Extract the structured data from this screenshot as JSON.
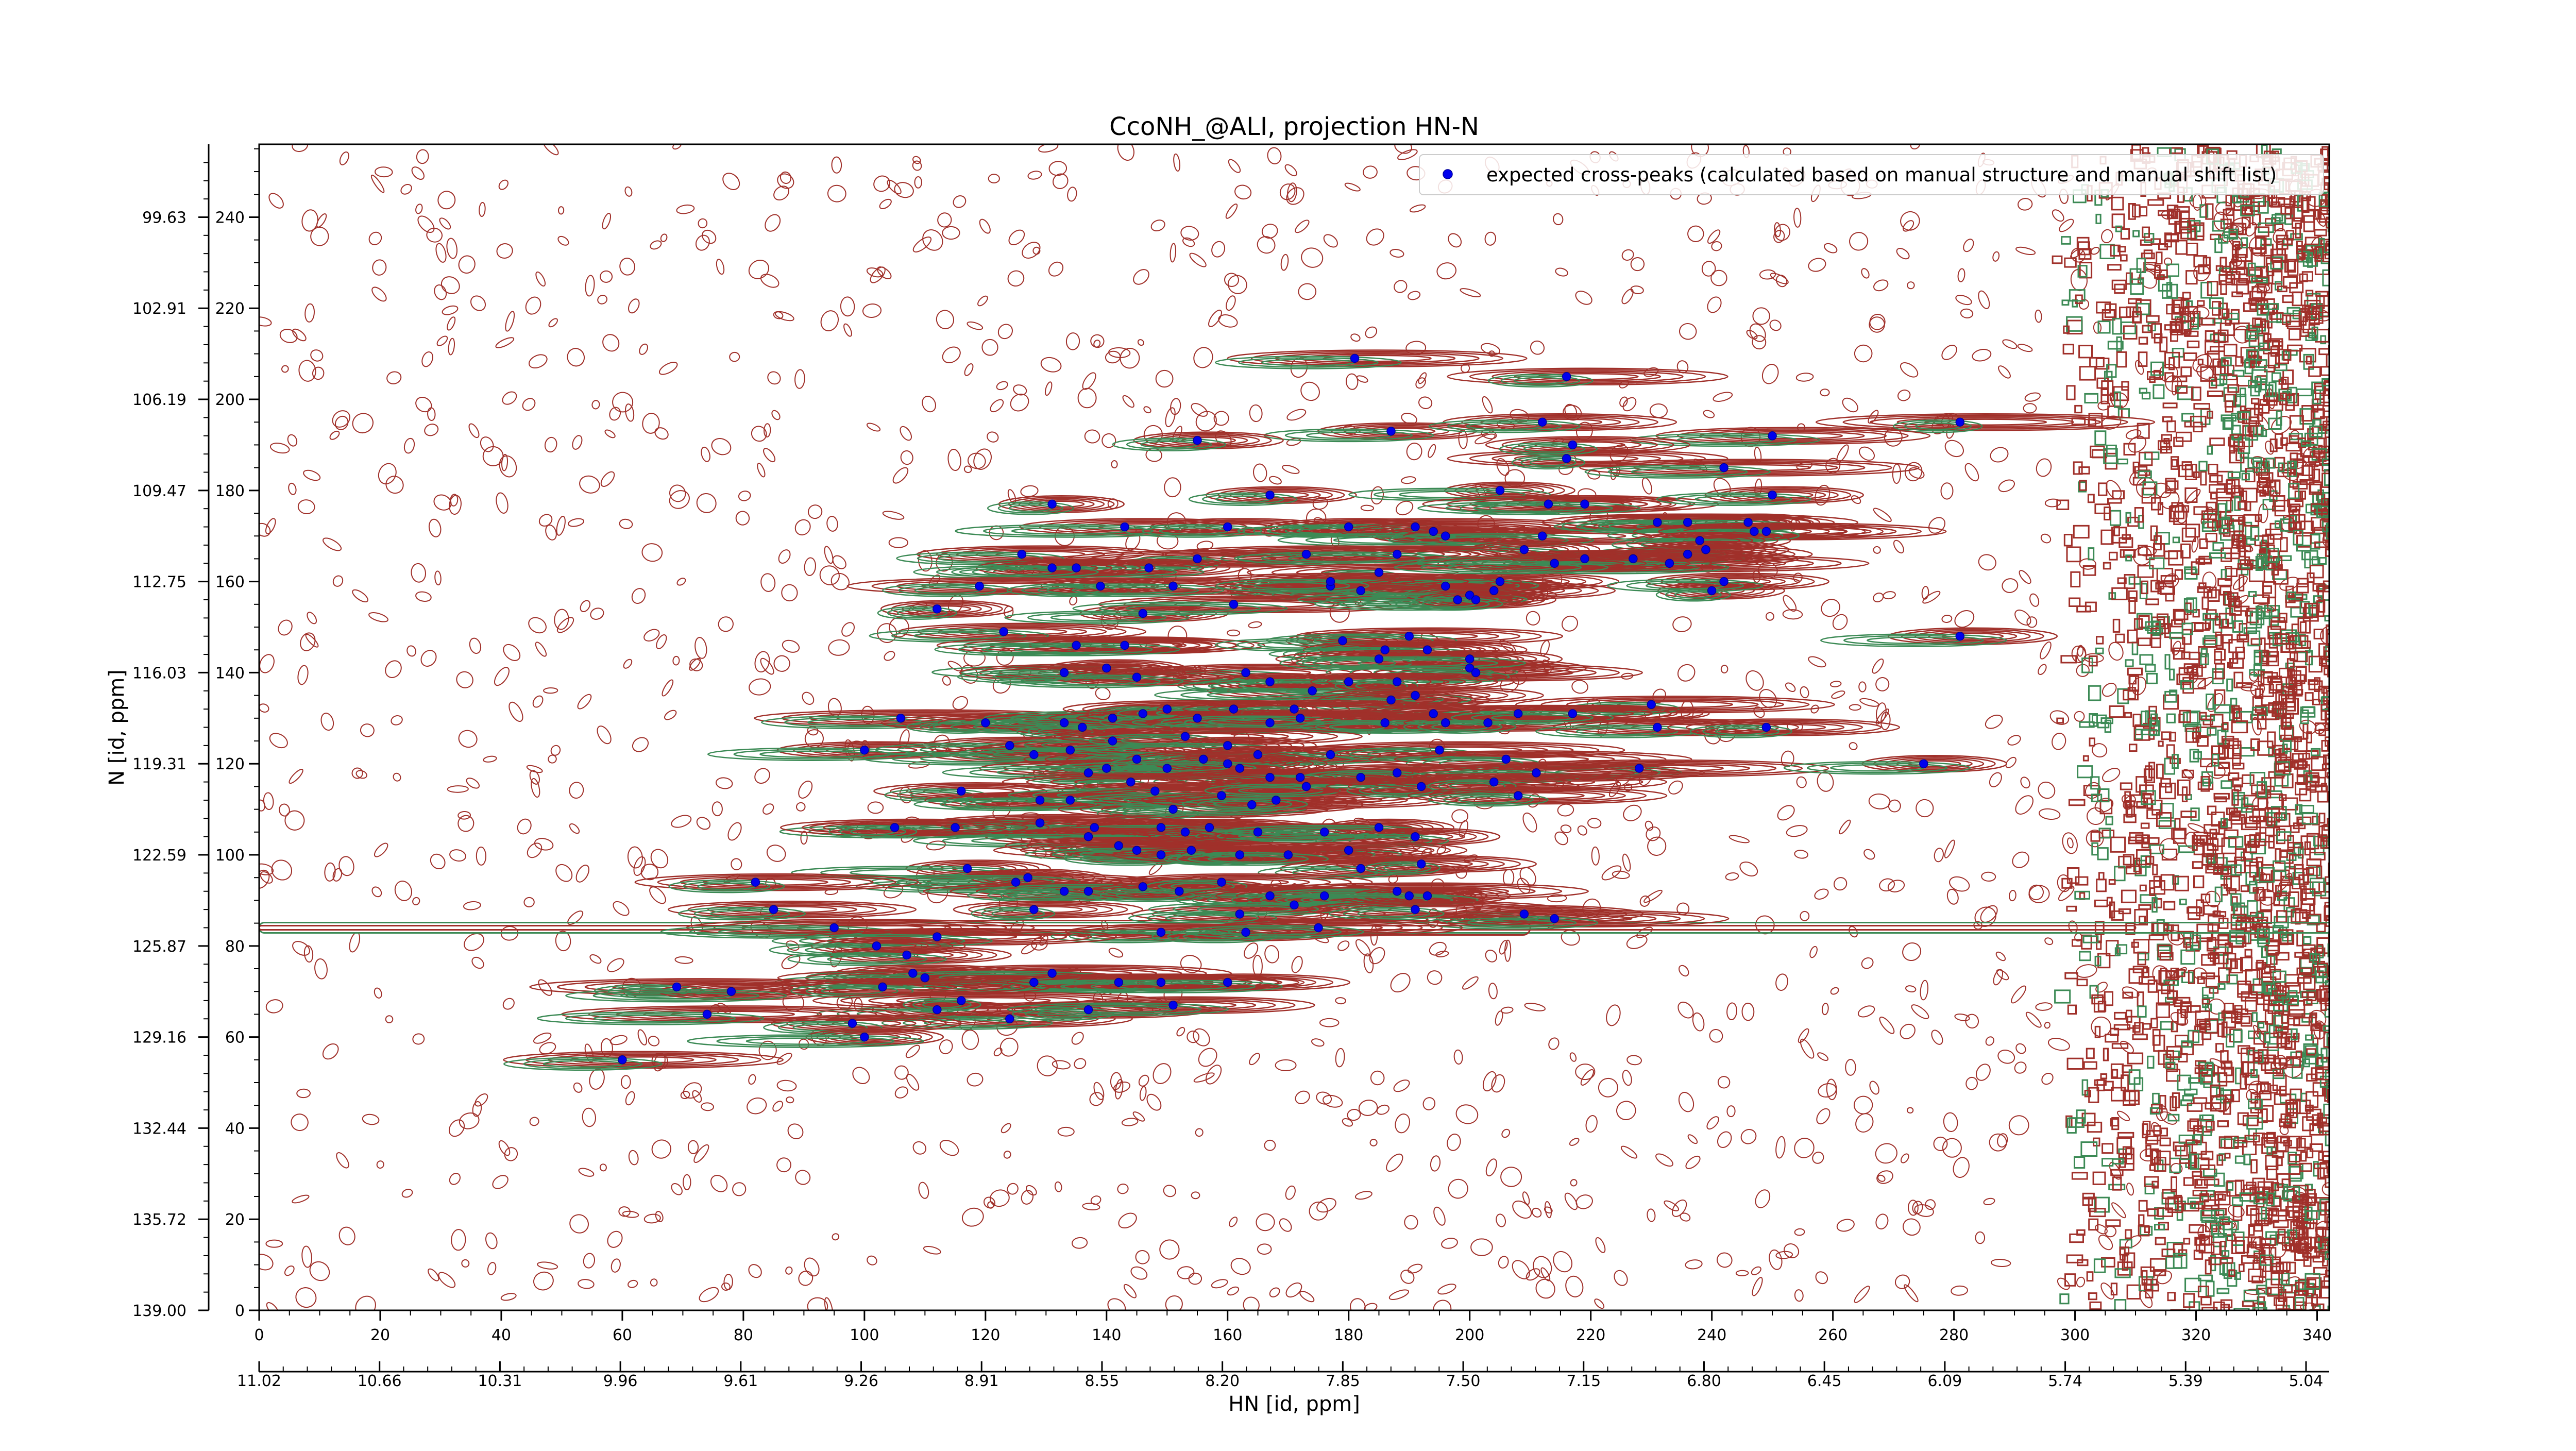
{
  "chart_data": {
    "type": "scatter",
    "title": "CcoNH_@ALI, projection HN-N",
    "xlabel": "HN [id, ppm]",
    "ylabel": "N [id, ppm]",
    "xlim": [
      0,
      342
    ],
    "ylim": [
      0,
      256
    ],
    "x_ticks": [
      0,
      20,
      40,
      60,
      80,
      100,
      120,
      140,
      160,
      180,
      200,
      220,
      240,
      260,
      280,
      300,
      320,
      340
    ],
    "y_ticks": [
      0,
      20,
      40,
      60,
      80,
      100,
      120,
      140,
      160,
      180,
      200,
      220,
      240
    ],
    "x_ppm_labels": [
      "11.02",
      "10.66",
      "10.31",
      "9.96",
      "9.61",
      "9.26",
      "8.91",
      "8.55",
      "8.20",
      "7.85",
      "7.50",
      "7.15",
      "6.80",
      "6.45",
      "6.09",
      "5.74",
      "5.39",
      "5.04"
    ],
    "y_ppm_labels": [
      "139.00",
      "135.72",
      "132.44",
      "129.16",
      "125.87",
      "122.59",
      "119.31",
      "116.03",
      "112.75",
      "109.47",
      "106.19",
      "102.91",
      "99.63"
    ],
    "legend": {
      "position": "top-right",
      "entries": [
        "expected cross-peaks (calculated based on manual structure and manual shift list)"
      ]
    },
    "colors": {
      "peaks": "#0000ee",
      "contour_positive": "#a0302a",
      "contour_negative": "#3c8a55",
      "axis": "#000000"
    },
    "series": [
      {
        "name": "expected cross-peaks (calculated based on manual structure and manual shift list)",
        "points": [
          [
            181,
            209
          ],
          [
            216,
            205
          ],
          [
            187,
            193
          ],
          [
            155,
            191
          ],
          [
            212,
            195
          ],
          [
            281,
            195
          ],
          [
            250,
            192
          ],
          [
            216,
            187
          ],
          [
            217,
            190
          ],
          [
            242,
            185
          ],
          [
            167,
            179
          ],
          [
            205,
            180
          ],
          [
            213,
            177
          ],
          [
            219,
            177
          ],
          [
            250,
            179
          ],
          [
            131,
            177
          ],
          [
            126,
            166
          ],
          [
            135,
            163
          ],
          [
            143,
            172
          ],
          [
            160,
            172
          ],
          [
            180,
            172
          ],
          [
            191,
            172
          ],
          [
            194,
            171
          ],
          [
            196,
            170
          ],
          [
            212,
            170
          ],
          [
            231,
            173
          ],
          [
            236,
            173
          ],
          [
            246,
            173
          ],
          [
            247,
            171
          ],
          [
            249,
            171
          ],
          [
            238,
            169
          ],
          [
            239,
            167
          ],
          [
            236,
            166
          ],
          [
            209,
            167
          ],
          [
            173,
            166
          ],
          [
            155,
            165
          ],
          [
            147,
            163
          ],
          [
            131,
            163
          ],
          [
            188,
            166
          ],
          [
            177,
            159
          ],
          [
            182,
            158
          ],
          [
            185,
            162
          ],
          [
            196,
            159
          ],
          [
            204,
            158
          ],
          [
            205,
            160
          ],
          [
            219,
            165
          ],
          [
            227,
            165
          ],
          [
            233,
            164
          ],
          [
            240,
            158
          ],
          [
            119,
            159
          ],
          [
            139,
            159
          ],
          [
            151,
            159
          ],
          [
            146,
            153
          ],
          [
            161,
            155
          ],
          [
            177,
            160
          ],
          [
            198,
            156
          ],
          [
            200,
            157
          ],
          [
            201,
            156
          ],
          [
            214,
            164
          ],
          [
            242,
            160
          ],
          [
            112,
            154
          ],
          [
            123,
            149
          ],
          [
            135,
            146
          ],
          [
            143,
            146
          ],
          [
            140,
            141
          ],
          [
            163,
            140
          ],
          [
            167,
            138
          ],
          [
            179,
            147
          ],
          [
            190,
            148
          ],
          [
            186,
            145
          ],
          [
            193,
            145
          ],
          [
            200,
            141
          ],
          [
            201,
            140
          ],
          [
            281,
            148
          ],
          [
            185,
            143
          ],
          [
            200,
            143
          ],
          [
            133,
            140
          ],
          [
            145,
            139
          ],
          [
            174,
            136
          ],
          [
            180,
            138
          ],
          [
            188,
            138
          ],
          [
            191,
            135
          ],
          [
            187,
            134
          ],
          [
            194,
            131
          ],
          [
            208,
            131
          ],
          [
            230,
            133
          ],
          [
            106,
            130
          ],
          [
            120,
            129
          ],
          [
            133,
            129
          ],
          [
            136,
            128
          ],
          [
            141,
            130
          ],
          [
            146,
            131
          ],
          [
            150,
            132
          ],
          [
            155,
            130
          ],
          [
            161,
            132
          ],
          [
            171,
            132
          ],
          [
            167,
            129
          ],
          [
            172,
            130
          ],
          [
            186,
            129
          ],
          [
            196,
            129
          ],
          [
            203,
            129
          ],
          [
            217,
            131
          ],
          [
            231,
            128
          ],
          [
            249,
            128
          ],
          [
            100,
            123
          ],
          [
            124,
            124
          ],
          [
            128,
            122
          ],
          [
            134,
            123
          ],
          [
            141,
            125
          ],
          [
            145,
            121
          ],
          [
            153,
            126
          ],
          [
            160,
            124
          ],
          [
            162,
            119
          ],
          [
            165,
            122
          ],
          [
            177,
            122
          ],
          [
            195,
            123
          ],
          [
            206,
            121
          ],
          [
            228,
            119
          ],
          [
            275,
            120
          ],
          [
            137,
            118
          ],
          [
            140,
            119
          ],
          [
            150,
            119
          ],
          [
            156,
            121
          ],
          [
            160,
            120
          ],
          [
            167,
            117
          ],
          [
            172,
            117
          ],
          [
            182,
            117
          ],
          [
            188,
            118
          ],
          [
            211,
            118
          ],
          [
            116,
            114
          ],
          [
            129,
            112
          ],
          [
            134,
            112
          ],
          [
            144,
            116
          ],
          [
            148,
            114
          ],
          [
            151,
            110
          ],
          [
            159,
            113
          ],
          [
            164,
            111
          ],
          [
            168,
            112
          ],
          [
            173,
            115
          ],
          [
            192,
            115
          ],
          [
            204,
            116
          ],
          [
            208,
            113
          ],
          [
            115,
            106
          ],
          [
            129,
            107
          ],
          [
            138,
            106
          ],
          [
            149,
            106
          ],
          [
            153,
            105
          ],
          [
            157,
            106
          ],
          [
            165,
            105
          ],
          [
            176,
            105
          ],
          [
            185,
            106
          ],
          [
            191,
            104
          ],
          [
            180,
            101
          ],
          [
            105,
            106
          ],
          [
            137,
            104
          ],
          [
            142,
            102
          ],
          [
            145,
            101
          ],
          [
            149,
            100
          ],
          [
            154,
            101
          ],
          [
            162,
            100
          ],
          [
            170,
            100
          ],
          [
            182,
            97
          ],
          [
            192,
            98
          ],
          [
            117,
            97
          ],
          [
            125,
            94
          ],
          [
            127,
            95
          ],
          [
            133,
            92
          ],
          [
            137,
            92
          ],
          [
            146,
            93
          ],
          [
            152,
            92
          ],
          [
            159,
            94
          ],
          [
            167,
            91
          ],
          [
            176,
            91
          ],
          [
            188,
            92
          ],
          [
            82,
            94
          ],
          [
            85,
            88
          ],
          [
            128,
            88
          ],
          [
            162,
            87
          ],
          [
            171,
            89
          ],
          [
            190,
            91
          ],
          [
            193,
            91
          ],
          [
            209,
            87
          ],
          [
            214,
            86
          ],
          [
            191,
            88
          ],
          [
            95,
            84
          ],
          [
            149,
            83
          ],
          [
            163,
            83
          ],
          [
            175,
            84
          ],
          [
            112,
            82
          ],
          [
            102,
            80
          ],
          [
            107,
            78
          ],
          [
            108,
            74
          ],
          [
            110,
            73
          ],
          [
            128,
            72
          ],
          [
            131,
            74
          ],
          [
            142,
            72
          ],
          [
            149,
            72
          ],
          [
            160,
            72
          ],
          [
            69,
            71
          ],
          [
            78,
            70
          ],
          [
            103,
            71
          ],
          [
            112,
            66
          ],
          [
            116,
            68
          ],
          [
            124,
            64
          ],
          [
            137,
            66
          ],
          [
            151,
            67
          ],
          [
            74,
            65
          ],
          [
            98,
            63
          ],
          [
            100,
            60
          ],
          [
            60,
            55
          ]
        ]
      }
    ]
  }
}
